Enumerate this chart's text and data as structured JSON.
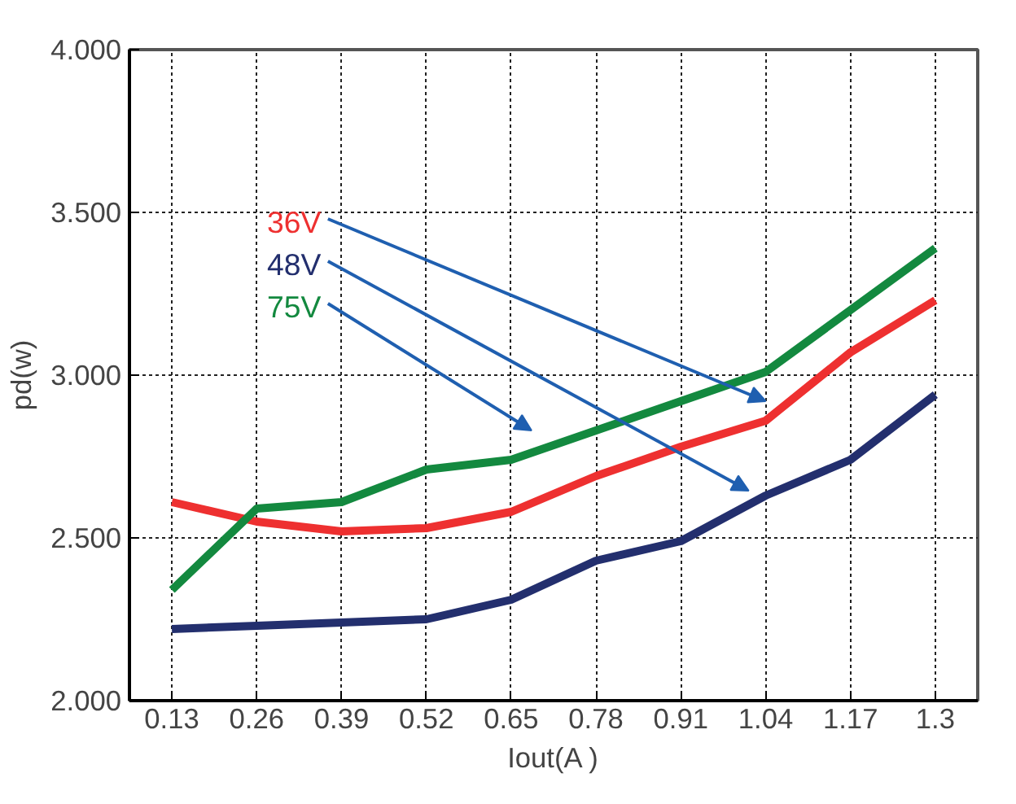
{
  "chart_data": {
    "type": "line",
    "xlabel": "Iout(A )",
    "ylabel": "pd(w)",
    "categories": [
      "0.13",
      "0.26",
      "0.39",
      "0.52",
      "0.65",
      "0.78",
      "0.91",
      "1.04",
      "1.17",
      "1.3"
    ],
    "series": [
      {
        "name": "36V",
        "color": "#ee3030",
        "values": [
          2.61,
          2.55,
          2.52,
          2.53,
          2.58,
          2.69,
          2.78,
          2.86,
          3.07,
          3.23
        ]
      },
      {
        "name": "48V",
        "color": "#232f6e",
        "values": [
          2.22,
          2.23,
          2.24,
          2.25,
          2.31,
          2.43,
          2.49,
          2.63,
          2.74,
          2.94
        ]
      },
      {
        "name": "75V",
        "color": "#13893f",
        "values": [
          2.34,
          2.59,
          2.61,
          2.71,
          2.74,
          2.83,
          2.92,
          3.01,
          3.2,
          3.39
        ]
      }
    ],
    "ylim": [
      2.0,
      4.0
    ],
    "yticks": [
      {
        "value": 2.0,
        "label": "2.000"
      },
      {
        "value": 2.5,
        "label": "2.500"
      },
      {
        "value": 3.0,
        "label": "3.000"
      },
      {
        "value": 3.5,
        "label": "3.500"
      },
      {
        "value": 4.0,
        "label": "4.000"
      }
    ],
    "grid": true,
    "legend": false,
    "marker": "none",
    "line_style": "solid"
  }
}
